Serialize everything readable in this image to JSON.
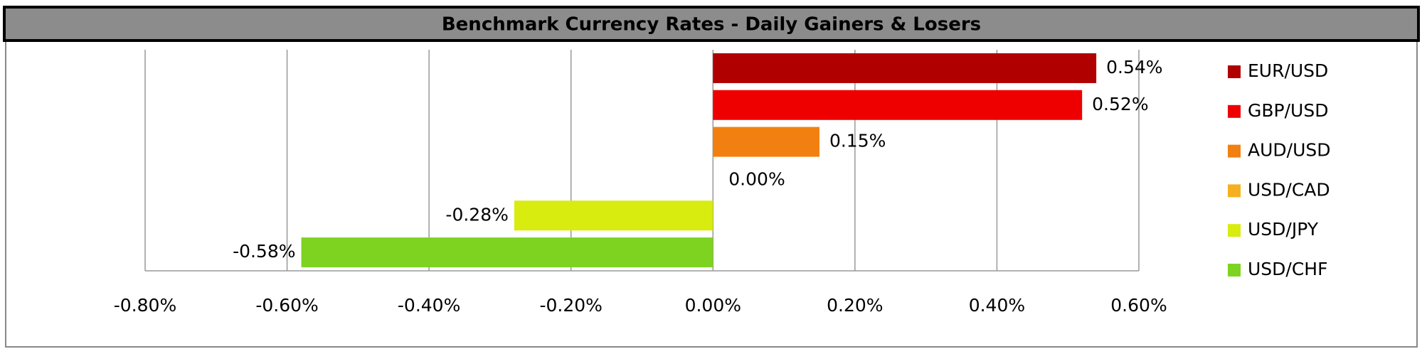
{
  "chart_data": {
    "type": "hbar",
    "title": "Benchmark Currency Rates - Daily Gainers & Losers",
    "categories": [
      "EUR/USD",
      "GBP/USD",
      "AUD/USD",
      "USD/CAD",
      "USD/JPY",
      "USD/CHF"
    ],
    "values": [
      0.54,
      0.52,
      0.15,
      0.0,
      -0.28,
      -0.58
    ],
    "value_labels": [
      "0.54%",
      "0.52%",
      "0.15%",
      "0.00%",
      "-0.28%",
      "-0.58%"
    ],
    "colors": [
      "#b00000",
      "#ee0000",
      "#f28010",
      "#f5b020",
      "#d8ec10",
      "#7ed321"
    ],
    "xlim": [
      -0.8,
      0.6
    ],
    "xticks": [
      {
        "value": -0.8,
        "label": "-0.80%"
      },
      {
        "value": -0.6,
        "label": "-0.60%"
      },
      {
        "value": -0.4,
        "label": "-0.40%"
      },
      {
        "value": -0.2,
        "label": "-0.20%"
      },
      {
        "value": 0.0,
        "label": "0.00%"
      },
      {
        "value": 0.2,
        "label": "0.20%"
      },
      {
        "value": 0.4,
        "label": "0.40%"
      },
      {
        "value": 0.6,
        "label": "0.60%"
      }
    ],
    "grid": true,
    "legend": "right"
  }
}
